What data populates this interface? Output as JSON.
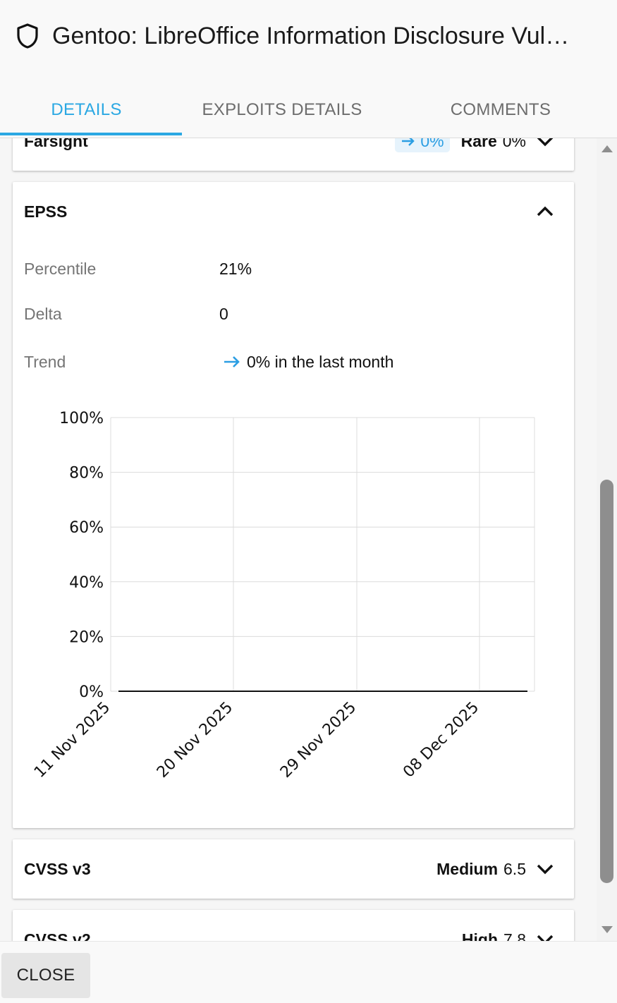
{
  "header": {
    "title": "Gentoo: LibreOffice Information Disclosure Vul…",
    "tabs": [
      {
        "label": "DETAILS",
        "active": true
      },
      {
        "label": "EXPLOITS DETAILS",
        "active": false
      },
      {
        "label": "COMMENTS",
        "active": false
      }
    ]
  },
  "farsight": {
    "title": "Farsight",
    "trend_pill": "0%",
    "rarity_label": "Rare",
    "rarity_value": "0%"
  },
  "epss": {
    "title": "EPSS",
    "rows": [
      {
        "label": "Percentile",
        "value": "21%"
      },
      {
        "label": "Delta",
        "value": "0"
      },
      {
        "label": "Trend",
        "value": "0% in the last month"
      }
    ]
  },
  "chart_data": {
    "type": "line",
    "title": "",
    "xlabel": "",
    "ylabel": "",
    "x_ticks": [
      "11 Nov 2025",
      "20 Nov 2025",
      "29 Nov 2025",
      "08 Dec 2025"
    ],
    "y_ticks": [
      "0%",
      "20%",
      "40%",
      "60%",
      "80%",
      "100%"
    ],
    "ylim": [
      0,
      100
    ],
    "x": [
      "2025-11-11",
      "2025-11-20",
      "2025-11-29",
      "2025-12-08",
      "2025-12-11"
    ],
    "series": [
      {
        "values": [
          0,
          0,
          0,
          0,
          0
        ]
      }
    ],
    "grid": true,
    "line_color": "#111111"
  },
  "cvss3": {
    "title": "CVSS v3",
    "severity": "Medium",
    "score": "6.5"
  },
  "cvss2": {
    "title": "CVSS v2",
    "severity": "High",
    "score": "7.8"
  },
  "footer": {
    "close_label": "CLOSE"
  },
  "colors": {
    "accent": "#2ba8e3",
    "trend_blue": "#2b9ee3"
  }
}
